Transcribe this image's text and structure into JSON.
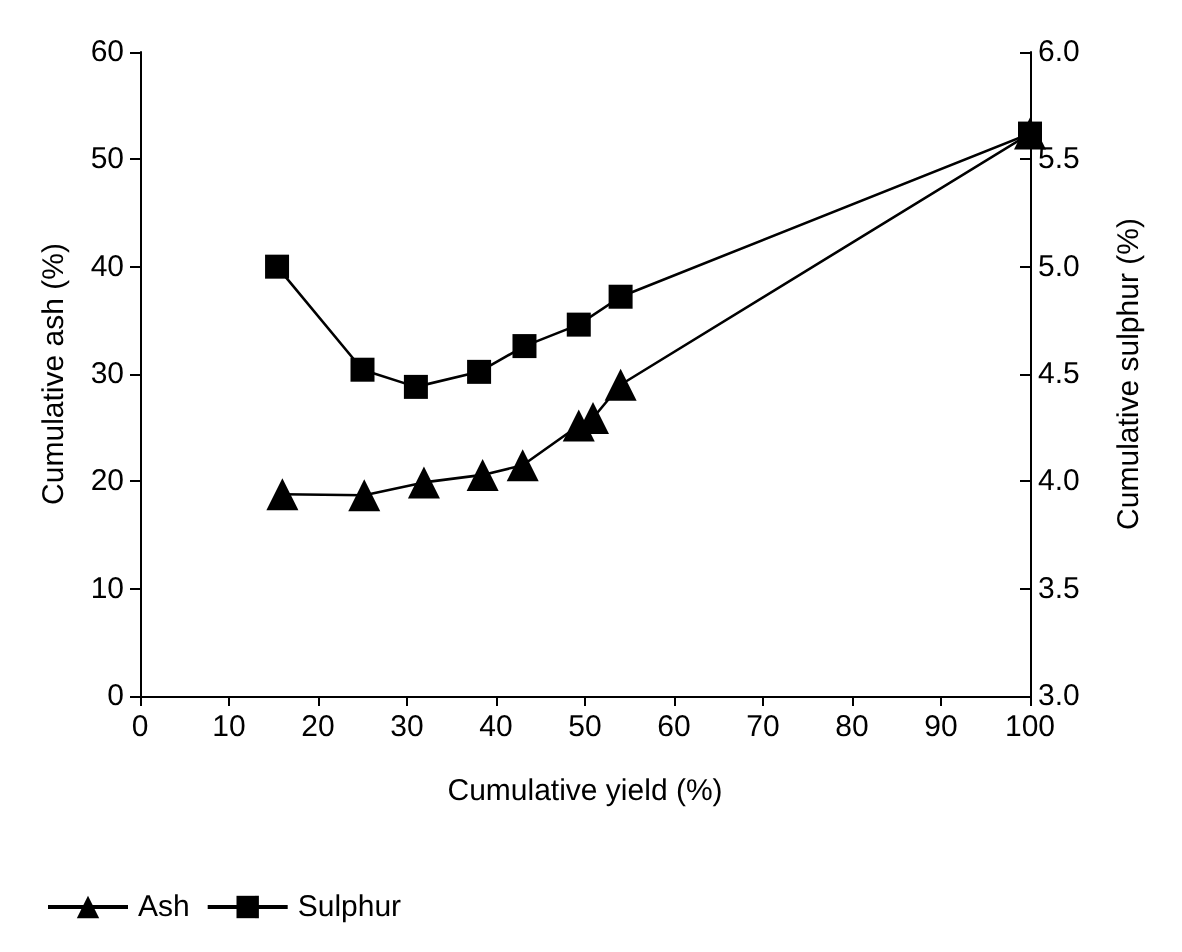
{
  "chart_data": {
    "type": "line",
    "xlabel": "Cumulative yield (%)",
    "ylabel": "Cumulative ash (%)",
    "y2label": "Cumulative sulphur (%)",
    "xlim": [
      0,
      100
    ],
    "xticks": [
      0,
      10,
      20,
      30,
      40,
      50,
      60,
      70,
      80,
      90,
      100
    ],
    "ylim": [
      0,
      60
    ],
    "yticks": [
      0,
      10,
      20,
      30,
      40,
      50,
      60
    ],
    "y2lim": [
      3,
      6
    ],
    "y2ticks": [
      {
        "value": 3,
        "label": "3.0"
      },
      {
        "value": 3.5,
        "label": "3.5"
      },
      {
        "value": 4,
        "label": "4.0"
      },
      {
        "value": 4.5,
        "label": "4.5"
      },
      {
        "value": 5,
        "label": "5.0"
      },
      {
        "value": 5.5,
        "label": "5.5"
      },
      {
        "value": 6,
        "label": "6.0"
      }
    ],
    "grid": false,
    "legend": "bottom left",
    "line_style": "solid",
    "series": [
      {
        "name": "Ash",
        "color": "#000000",
        "marker": "triangle",
        "x": [
          16,
          25.2,
          31.9,
          38.5,
          43,
          49.3,
          50.9,
          54,
          100
        ],
        "values": [
          18.8,
          18.7,
          19.9,
          20.6,
          21.5,
          25.2,
          25.9,
          29,
          52.4
        ]
      },
      {
        "name": "Sulphur",
        "color": "#000000",
        "marker": "square",
        "axis": "y2",
        "x": [
          15.4,
          25,
          31,
          38.1,
          43.2,
          49.3,
          54,
          100
        ],
        "values": [
          5.0,
          4.52,
          4.44,
          4.51,
          4.63,
          4.73,
          4.86,
          5.62
        ]
      }
    ]
  }
}
